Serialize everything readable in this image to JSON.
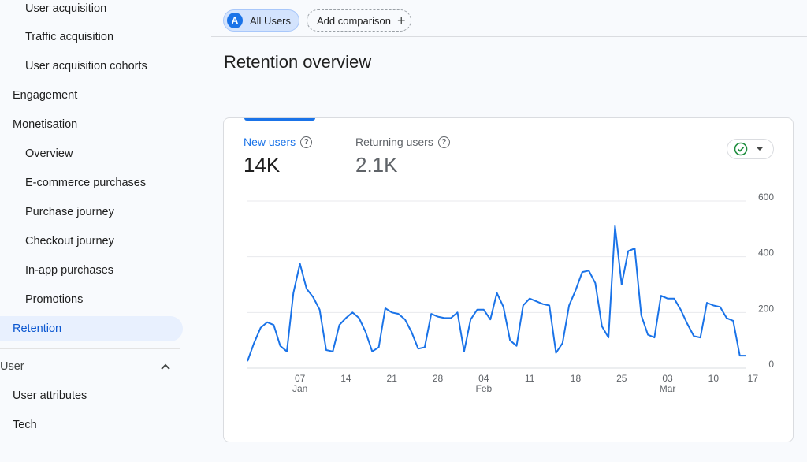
{
  "sidebar": {
    "items": [
      {
        "label": "User acquisition"
      },
      {
        "label": "Traffic acquisition"
      },
      {
        "label": "User acquisition cohorts"
      },
      {
        "label": "Engagement"
      },
      {
        "label": "Monetisation"
      },
      {
        "label": "Overview"
      },
      {
        "label": "E-commerce purchases"
      },
      {
        "label": "Purchase journey"
      },
      {
        "label": "Checkout journey"
      },
      {
        "label": "In-app purchases"
      },
      {
        "label": "Promotions"
      },
      {
        "label": "Retention"
      }
    ],
    "section_user": "User",
    "user_items": [
      {
        "label": "User attributes"
      },
      {
        "label": "Tech"
      }
    ]
  },
  "chips": {
    "all_users_avatar": "A",
    "all_users": "All Users",
    "add_comparison": "Add comparison"
  },
  "page": {
    "title": "Retention overview"
  },
  "metrics": {
    "new_users_label": "New users",
    "new_users_value": "14K",
    "returning_users_label": "Returning users",
    "returning_users_value": "2.1K"
  },
  "chart_data": {
    "type": "line",
    "series": [
      {
        "name": "New users",
        "color": "#1a73e8",
        "values": [
          25,
          90,
          145,
          165,
          155,
          80,
          60,
          270,
          375,
          285,
          255,
          210,
          65,
          60,
          155,
          180,
          200,
          180,
          130,
          60,
          75,
          215,
          200,
          195,
          175,
          130,
          70,
          75,
          195,
          185,
          180,
          180,
          200,
          60,
          175,
          210,
          210,
          175,
          270,
          220,
          100,
          80,
          225,
          250,
          240,
          230,
          225,
          55,
          90,
          225,
          280,
          345,
          350,
          305,
          150,
          110,
          510,
          300,
          420,
          430,
          190,
          120,
          110,
          260,
          250,
          250,
          210,
          160,
          115,
          110,
          235,
          225,
          220,
          180,
          170,
          45,
          45
        ]
      }
    ],
    "x_ticks": [
      {
        "label": "07",
        "sub": "Jan",
        "index": 8
      },
      {
        "label": "14",
        "sub": "",
        "index": 15
      },
      {
        "label": "21",
        "sub": "",
        "index": 22
      },
      {
        "label": "28",
        "sub": "",
        "index": 29
      },
      {
        "label": "04",
        "sub": "Feb",
        "index": 36
      },
      {
        "label": "11",
        "sub": "",
        "index": 43
      },
      {
        "label": "18",
        "sub": "",
        "index": 50
      },
      {
        "label": "25",
        "sub": "",
        "index": 57
      },
      {
        "label": "03",
        "sub": "Mar",
        "index": 64
      },
      {
        "label": "10",
        "sub": "",
        "index": 71
      },
      {
        "label": "17",
        "sub": "",
        "index": 77
      }
    ],
    "y_ticks": [
      "0",
      "200",
      "400",
      "600"
    ],
    "ylim": [
      0,
      600
    ],
    "grid": true
  }
}
